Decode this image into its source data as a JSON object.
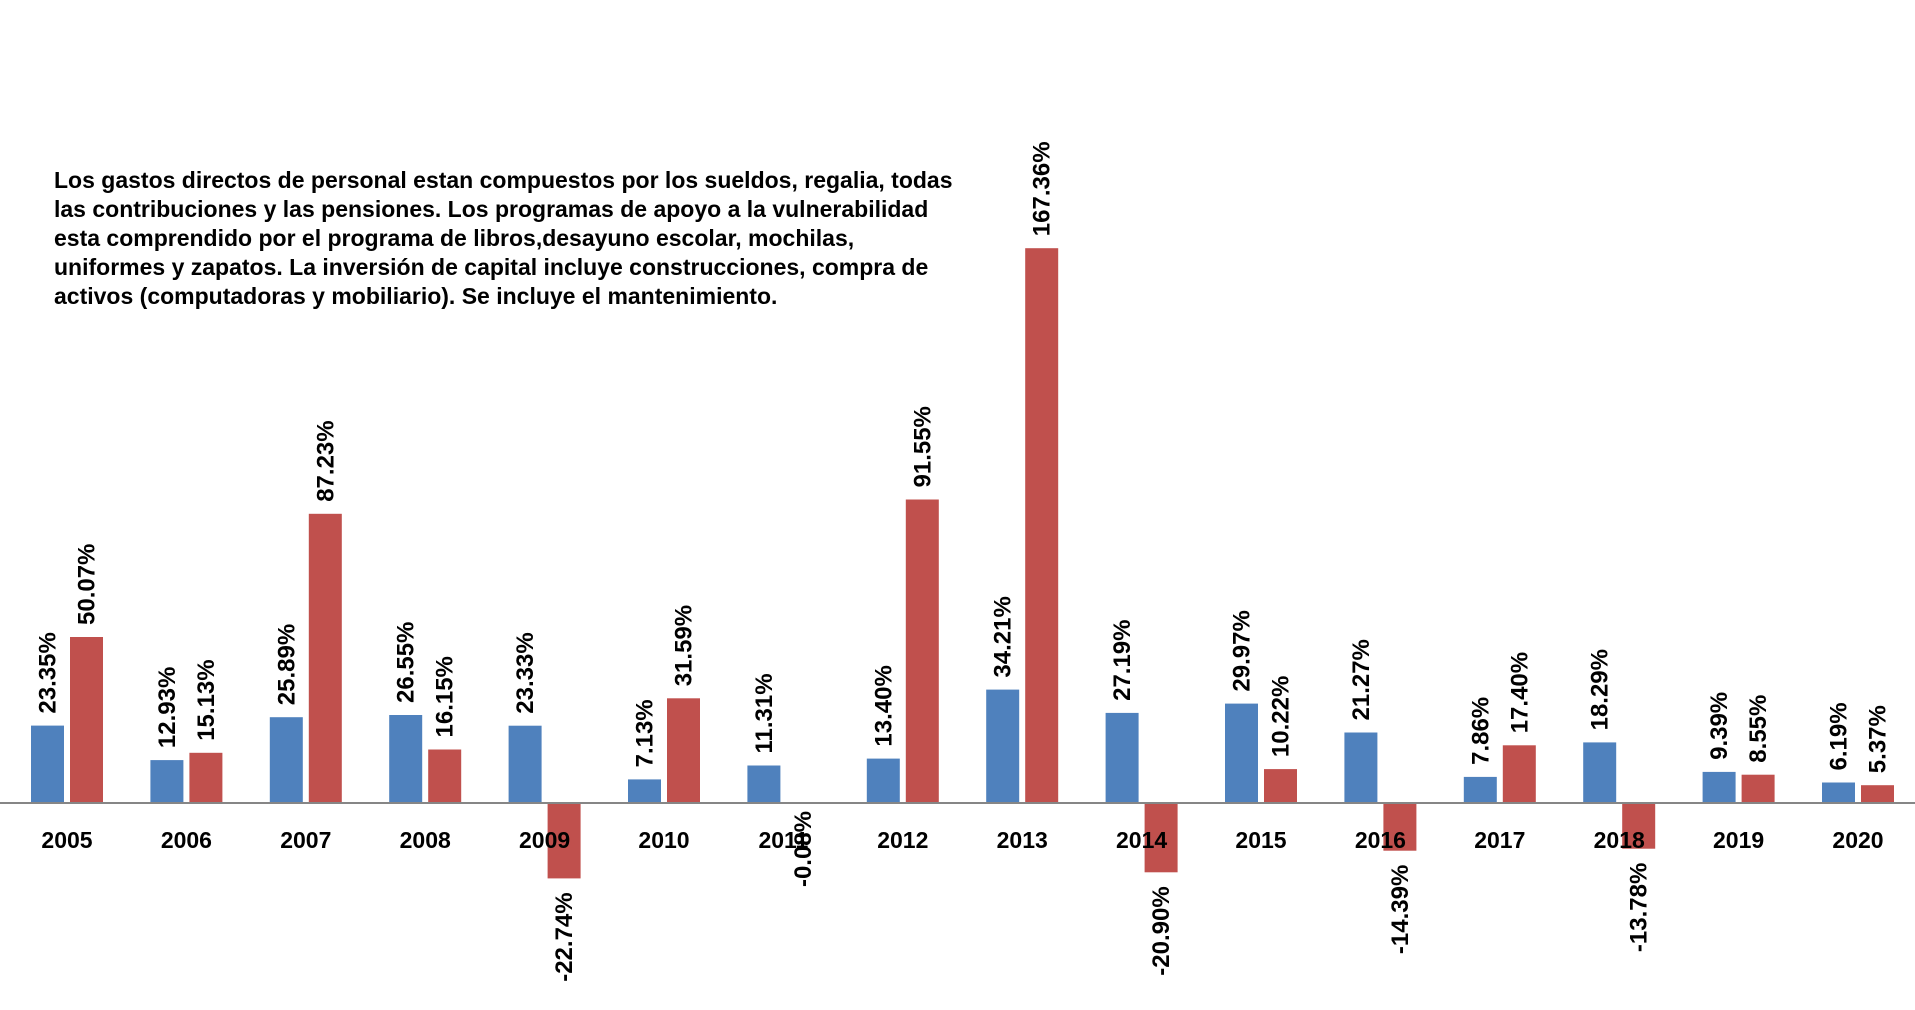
{
  "chart_data": {
    "type": "bar",
    "title": "",
    "xlabel": "",
    "ylabel": "",
    "categories": [
      "2005",
      "2006",
      "2007",
      "2008",
      "2009",
      "2010",
      "2011",
      "2012",
      "2013",
      "2014",
      "2015",
      "2016",
      "2017",
      "2018",
      "2019",
      "2020"
    ],
    "series": [
      {
        "color": "#4F81BD",
        "values": [
          23.35,
          12.93,
          25.89,
          26.55,
          23.33,
          7.13,
          11.31,
          13.4,
          34.21,
          27.19,
          29.97,
          21.27,
          7.86,
          18.29,
          9.39,
          6.19
        ],
        "labels": [
          "23.35%",
          "12.93%",
          "25.89%",
          "26.55%",
          "23.33%",
          "7.13%",
          "11.31%",
          "13.40%",
          "34.21%",
          "27.19%",
          "29.97%",
          "21.27%",
          "7.86%",
          "18.29%",
          "9.39%",
          "6.19%"
        ]
      },
      {
        "color": "#C0504D",
        "values": [
          50.07,
          15.13,
          87.23,
          16.15,
          -22.74,
          31.59,
          -0.08,
          91.55,
          167.36,
          -20.9,
          10.22,
          -14.39,
          17.4,
          -13.78,
          8.55,
          5.37
        ],
        "labels": [
          "50.07%",
          "15.13%",
          "87.23%",
          "16.15%",
          "-22.74%",
          "31.59%",
          "-0.08%",
          "91.55%",
          "167.36%",
          "-20.90%",
          "10.22%",
          "-14.39%",
          "17.40%",
          "-13.78%",
          "8.55%",
          "5.37%"
        ]
      }
    ],
    "ylim": [
      -24,
      170
    ],
    "grid": false,
    "legend": "none",
    "annotation_lines": [
      "Los gastos directos de personal estan compuestos por los sueldos, regalia, todas",
      "las contribuciones y las pensiones. Los programas de apoyo a la vulnerabilidad",
      "esta comprendido por el programa de libros,desayuno escolar, mochilas,",
      "uniformes y zapatos. La inversión de capital incluye construcciones, compra de",
      "activos (computadoras y mobiliario). Se incluye el mantenimiento."
    ]
  }
}
